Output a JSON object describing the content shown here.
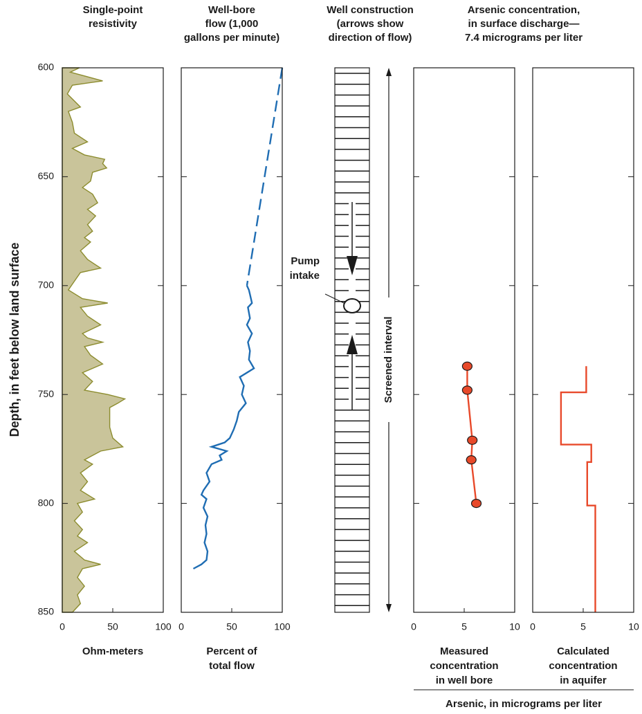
{
  "depth_axis": {
    "label": "Depth, in feet below land surface",
    "ylim": [
      600,
      850
    ],
    "yticks": [
      600,
      650,
      700,
      750,
      800,
      850
    ]
  },
  "chart_data": [
    {
      "type": "area",
      "title": [
        "Single-point",
        "resistivity"
      ],
      "xlabel": [
        "Ohm-meters"
      ],
      "xlim": [
        0,
        100
      ],
      "xticks": [
        0,
        50,
        100
      ],
      "color": "#c9c49a",
      "line_color": "#8c8c2e",
      "depth": [
        600,
        602,
        606,
        608,
        612,
        618,
        620,
        625,
        630,
        634,
        637,
        640,
        642,
        644,
        646,
        648,
        652,
        655,
        658,
        662,
        665,
        668,
        672,
        675,
        678,
        680,
        684,
        688,
        692,
        694,
        698,
        702,
        706,
        708,
        710,
        714,
        718,
        722,
        724,
        726,
        728,
        732,
        736,
        740,
        744,
        748,
        750,
        752,
        754,
        756,
        765,
        770,
        774,
        776,
        780,
        782,
        786,
        790,
        794,
        798,
        800,
        804,
        808,
        812,
        815,
        818,
        822,
        826,
        828,
        830,
        834,
        838,
        842,
        846,
        850
      ],
      "values": [
        17,
        8,
        40,
        10,
        5,
        18,
        6,
        10,
        12,
        25,
        10,
        22,
        42,
        40,
        44,
        30,
        28,
        20,
        30,
        35,
        25,
        33,
        25,
        30,
        22,
        28,
        18,
        25,
        38,
        18,
        12,
        6,
        20,
        45,
        18,
        25,
        38,
        20,
        25,
        40,
        22,
        28,
        40,
        20,
        30,
        22,
        45,
        62,
        55,
        47,
        47,
        50,
        60,
        38,
        22,
        30,
        18,
        25,
        18,
        32,
        15,
        20,
        12,
        20,
        15,
        25,
        12,
        22,
        38,
        20,
        15,
        22,
        15,
        18,
        10
      ]
    },
    {
      "type": "line",
      "title": [
        "Well-bore",
        "flow (1,000",
        "gallons per minute)"
      ],
      "xlabel": [
        "Percent of",
        "total flow"
      ],
      "xlim": [
        0,
        100
      ],
      "xticks": [
        0,
        50,
        100
      ],
      "series": [
        {
          "color": "#1f6db3",
          "dashed": false,
          "depth": [
            700,
            702,
            704,
            708,
            710,
            715,
            718,
            722,
            726,
            730,
            734,
            738,
            740,
            742,
            746,
            750,
            754,
            758,
            762,
            766,
            770,
            772,
            774,
            776,
            778,
            780,
            782,
            786,
            790,
            794,
            796,
            798,
            802,
            806,
            810,
            814,
            818,
            822,
            826,
            828,
            830
          ],
          "values": [
            65,
            67,
            68,
            70,
            66,
            68,
            65,
            70,
            66,
            68,
            67,
            72,
            65,
            58,
            62,
            60,
            64,
            57,
            55,
            52,
            48,
            43,
            30,
            45,
            38,
            40,
            30,
            25,
            28,
            22,
            20,
            25,
            22,
            26,
            24,
            25,
            23,
            26,
            25,
            20,
            12
          ]
        },
        {
          "color": "#1f6db3",
          "dashed": true,
          "depth": [
            600,
            700
          ],
          "values": [
            100,
            65
          ]
        }
      ]
    },
    {
      "type": "diagram",
      "title": [
        "Well construction",
        "(arrows show",
        "direction of flow)"
      ],
      "pump_label": [
        "Pump",
        "intake"
      ],
      "screen_label": "Screened interval"
    },
    {
      "type": "scatter",
      "xlabel": [
        "Measured",
        "concentration",
        "in well bore"
      ],
      "xlim": [
        0,
        10
      ],
      "xticks": [
        0,
        5,
        10
      ],
      "color": "#e8492a",
      "connect": true,
      "depth": [
        737,
        748,
        771,
        780,
        800
      ],
      "values": [
        5.3,
        5.3,
        5.8,
        5.7,
        6.2
      ]
    },
    {
      "type": "line",
      "xlabel": [
        "Calculated",
        "concentration",
        "in aquifer"
      ],
      "xlim": [
        0,
        10
      ],
      "xticks": [
        0,
        5,
        10
      ],
      "series": [
        {
          "color": "#e8492a",
          "dashed": false,
          "depth": [
            737,
            749,
            749,
            773,
            773,
            781,
            781,
            801,
            801,
            850
          ],
          "values": [
            5.3,
            5.3,
            2.8,
            2.8,
            5.8,
            5.8,
            5.4,
            5.4,
            6.2,
            6.2
          ]
        }
      ]
    }
  ],
  "shared_title": [
    "Arsenic concentration,",
    "in surface discharge—",
    "7.4 micrograms per liter"
  ],
  "shared_xlabel": "Arsenic, in micrograms per liter"
}
